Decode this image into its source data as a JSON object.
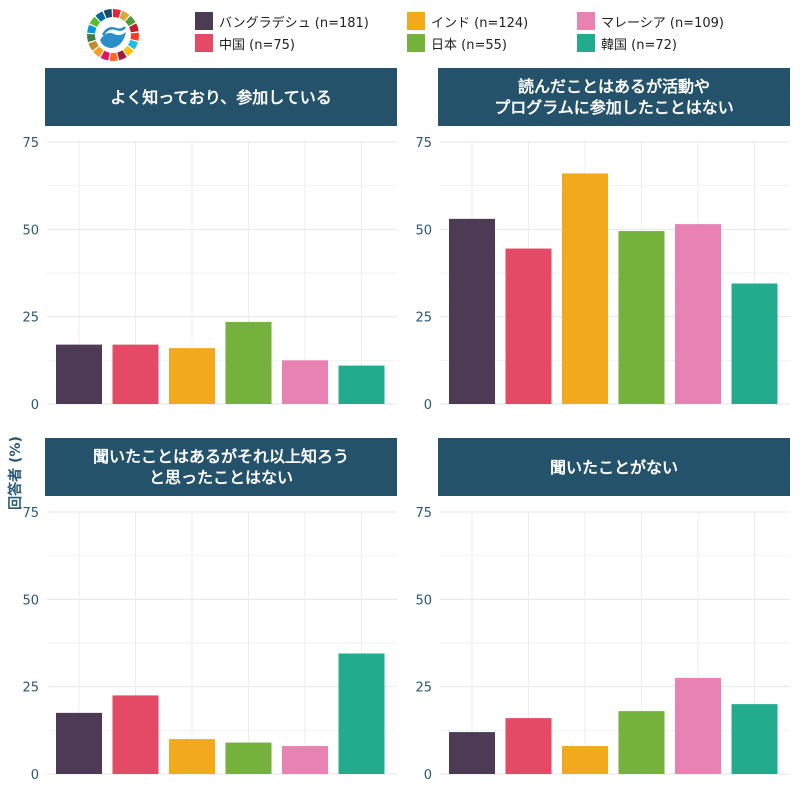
{
  "legend": [
    {
      "label": "バングラデシュ (n=181)",
      "color": "#4d3a55"
    },
    {
      "label": "インド (n=124)",
      "color": "#f2a91e"
    },
    {
      "label": "マレーシア (n=109)",
      "color": "#e782b3"
    },
    {
      "label": "中国 (n=75)",
      "color": "#e44a66"
    },
    {
      "label": "日本 (n=55)",
      "color": "#74b23b"
    },
    {
      "label": "韓国 (n=72)",
      "color": "#22ab8c"
    }
  ],
  "chart_data": {
    "type": "bar",
    "ylabel": "回答者 (%)",
    "ylim": [
      0,
      75
    ],
    "yticks": [
      0,
      25,
      50,
      75
    ],
    "grid": true,
    "legend_position": "top",
    "categories": [
      "バングラデシュ (n=181)",
      "中国 (n=75)",
      "インド (n=124)",
      "日本 (n=55)",
      "マレーシア (n=109)",
      "韓国 (n=72)"
    ],
    "colors": [
      "#4d3a55",
      "#e44a66",
      "#f2a91e",
      "#74b23b",
      "#e782b3",
      "#22ab8c"
    ],
    "panels": [
      {
        "title": "よく知っており、参加している",
        "values": [
          17,
          17,
          16,
          23.5,
          12.5,
          11
        ]
      },
      {
        "title": "読んだことはあるが活動や\nプログラムに参加したことはない",
        "values": [
          53,
          44.5,
          66,
          49.5,
          51.5,
          34.5
        ]
      },
      {
        "title": "聞いたことはあるがそれ以上知ろう\nと思ったことはない",
        "values": [
          17.5,
          22.5,
          10,
          9,
          8,
          34.5
        ]
      },
      {
        "title": "聞いたことがない",
        "values": [
          12,
          16,
          8,
          18,
          27.5,
          20
        ]
      }
    ]
  }
}
